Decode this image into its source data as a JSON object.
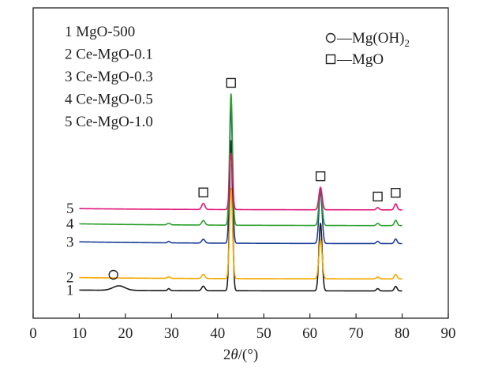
{
  "chart_data": {
    "type": "line",
    "xlabel_pre": "2",
    "xlabel_theta": "θ",
    "xlabel_post": "/(°)",
    "xlim": [
      0,
      90
    ],
    "xticks": [
      0,
      10,
      20,
      30,
      40,
      50,
      60,
      70,
      80,
      90
    ],
    "yaxis_ticks_shown": false,
    "legend_samples": [
      {
        "num": "1",
        "label": "MgO-500"
      },
      {
        "num": "2",
        "label": "Ce-MgO-0.1"
      },
      {
        "num": "3",
        "label": "Ce-MgO-0.3"
      },
      {
        "num": "4",
        "label": "Ce-MgO-0.5"
      },
      {
        "num": "5",
        "label": "Ce-MgO-1.0"
      }
    ],
    "legend_phases": [
      {
        "symbol": "circle",
        "text": "—Mg(OH)",
        "sub": "2",
        "phase": "Mg(OH)2"
      },
      {
        "symbol": "square",
        "text": "—MgO",
        "sub": "",
        "phase": "MgO"
      }
    ],
    "peak_markers": [
      {
        "phase": "Mg(OH)2",
        "x": 18.6,
        "above_series": "1"
      },
      {
        "phase": "MgO",
        "x": 36.9,
        "above_series": "5"
      },
      {
        "phase": "MgO",
        "x": 42.9,
        "above_series": "top"
      },
      {
        "phase": "MgO",
        "x": 62.3,
        "above_series": "top"
      },
      {
        "phase": "MgO",
        "x": 74.7,
        "above_series": "5"
      },
      {
        "phase": "MgO",
        "x": 78.6,
        "above_series": "5"
      }
    ],
    "series": [
      {
        "name": "1",
        "color": "#1a1a1a",
        "baseline": 0.1,
        "slope": 0.012,
        "peaks": [
          [
            18.6,
            0.06,
            1.3
          ],
          [
            29.4,
            0.025,
            0.25
          ],
          [
            36.9,
            0.06,
            0.35
          ],
          [
            42.9,
            2.0,
            0.32
          ],
          [
            62.3,
            0.9,
            0.35
          ],
          [
            74.7,
            0.03,
            0.3
          ],
          [
            78.6,
            0.06,
            0.3
          ]
        ]
      },
      {
        "name": "2",
        "color": "#f2a900",
        "baseline": 0.26,
        "slope": 0.018,
        "peaks": [
          [
            29.4,
            0.02,
            0.3
          ],
          [
            36.9,
            0.055,
            0.35
          ],
          [
            42.9,
            1.2,
            0.32
          ],
          [
            62.3,
            0.52,
            0.35
          ],
          [
            74.7,
            0.025,
            0.3
          ],
          [
            78.6,
            0.06,
            0.3
          ]
        ]
      },
      {
        "name": "3",
        "color": "#1c3f99",
        "baseline": 0.73,
        "slope": 0.025,
        "peaks": [
          [
            29.4,
            0.02,
            0.25
          ],
          [
            36.9,
            0.05,
            0.35
          ],
          [
            42.9,
            1.8,
            0.32
          ],
          [
            62.3,
            0.7,
            0.35
          ],
          [
            74.7,
            0.03,
            0.3
          ],
          [
            78.6,
            0.06,
            0.3
          ]
        ]
      },
      {
        "name": "4",
        "color": "#2ca02c",
        "baseline": 0.97,
        "slope": 0.025,
        "peaks": [
          [
            29.4,
            0.02,
            0.35
          ],
          [
            36.9,
            0.06,
            0.35
          ],
          [
            42.9,
            1.75,
            0.32
          ],
          [
            62.3,
            0.5,
            0.35
          ],
          [
            74.7,
            0.03,
            0.3
          ],
          [
            78.6,
            0.07,
            0.3
          ]
        ]
      },
      {
        "name": "5",
        "color": "#e0147a",
        "baseline": 1.18,
        "slope": 0.018,
        "peaks": [
          [
            36.9,
            0.08,
            0.35
          ],
          [
            42.9,
            0.75,
            0.32
          ],
          [
            62.3,
            0.3,
            0.35
          ],
          [
            74.7,
            0.03,
            0.3
          ],
          [
            78.6,
            0.08,
            0.3
          ]
        ]
      }
    ]
  }
}
